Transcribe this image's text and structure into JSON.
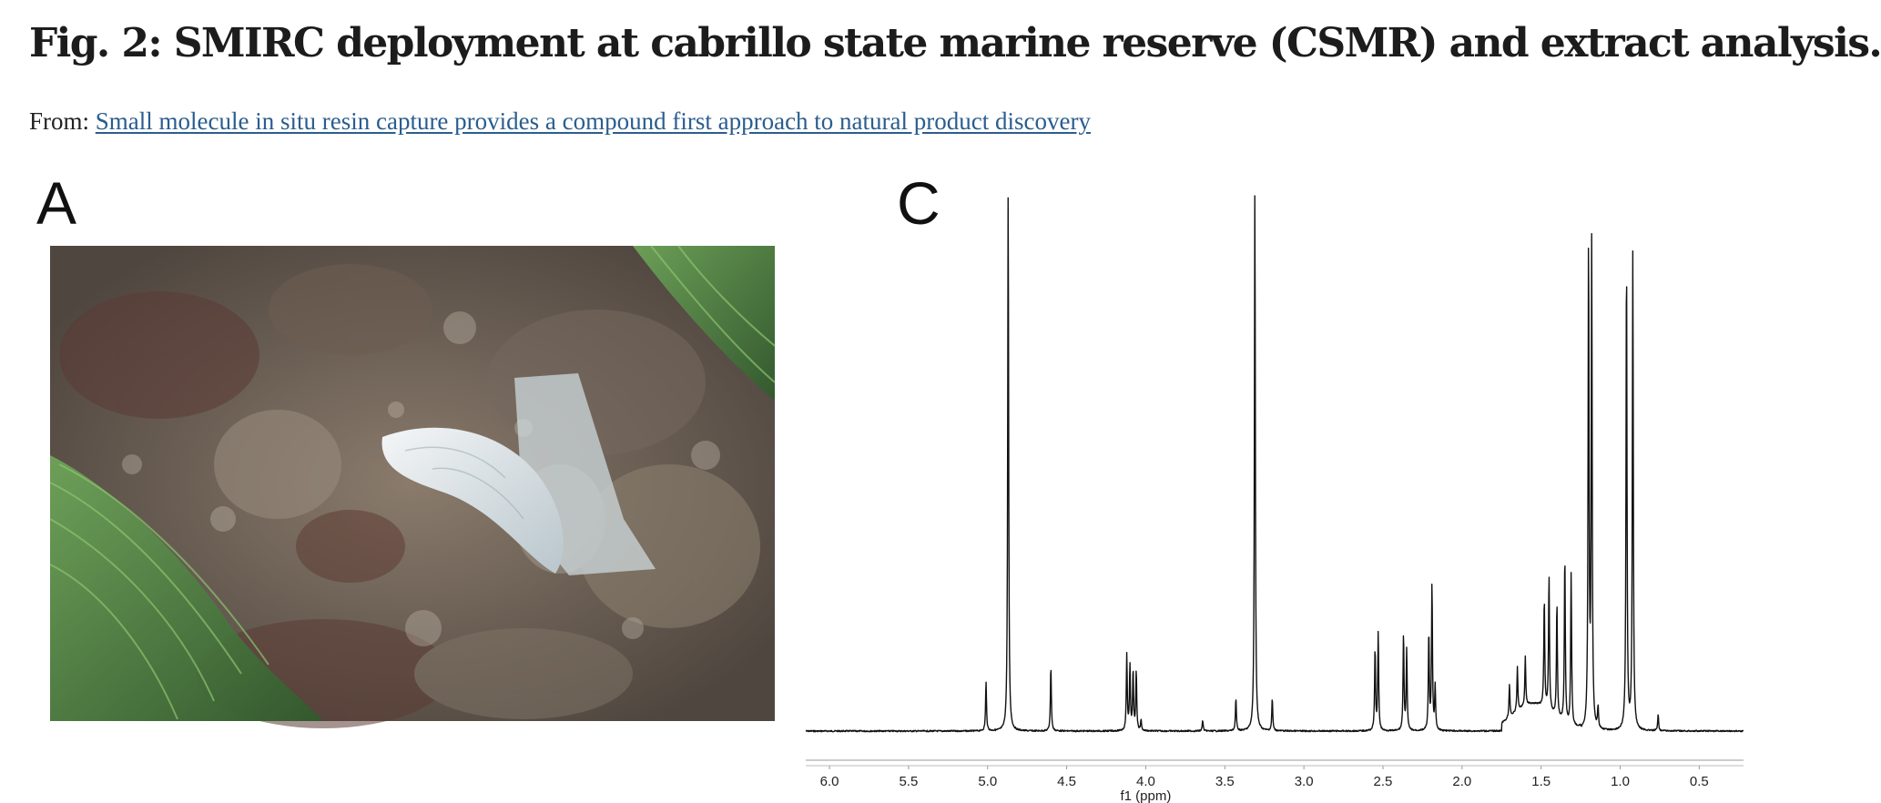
{
  "figure": {
    "title": "Fig. 2: SMIRC deployment at cabrillo state marine reserve (CSMR) and extract analysis.",
    "from_label": "From:",
    "source_link": "Small molecule in situ resin capture provides a compound first approach to natural product discovery"
  },
  "panels": {
    "a_label": "A",
    "c_label": "C"
  },
  "colors": {
    "link": "#2a5d8f",
    "spectrum": "#111111"
  },
  "chart_data": {
    "type": "line",
    "title": "",
    "xlabel": "f1 (ppm)",
    "ylabel": "",
    "xlim": [
      6.15,
      0.22
    ],
    "x_reversed": true,
    "x_ticks": [
      "6.0",
      "5.5",
      "5.0",
      "4.5",
      "4.0",
      "3.5",
      "3.0",
      "2.5",
      "2.0",
      "1.5",
      "1.0",
      "0.5"
    ],
    "y_axis_shown": false,
    "grid": false,
    "peaks": [
      {
        "ppm": 5.01,
        "height": 0.09
      },
      {
        "ppm": 4.87,
        "height": 1.0
      },
      {
        "ppm": 4.6,
        "height": 0.12
      },
      {
        "ppm": 4.12,
        "height": 0.14
      },
      {
        "ppm": 4.1,
        "height": 0.12
      },
      {
        "ppm": 4.08,
        "height": 0.11
      },
      {
        "ppm": 4.06,
        "height": 0.11
      },
      {
        "ppm": 4.03,
        "height": 0.02
      },
      {
        "ppm": 3.64,
        "height": 0.02
      },
      {
        "ppm": 3.43,
        "height": 0.06
      },
      {
        "ppm": 3.31,
        "height": 1.0
      },
      {
        "ppm": 3.2,
        "height": 0.06
      },
      {
        "ppm": 2.55,
        "height": 0.15
      },
      {
        "ppm": 2.53,
        "height": 0.18
      },
      {
        "ppm": 2.37,
        "height": 0.18
      },
      {
        "ppm": 2.35,
        "height": 0.15
      },
      {
        "ppm": 2.21,
        "height": 0.18
      },
      {
        "ppm": 2.19,
        "height": 0.27
      },
      {
        "ppm": 2.17,
        "height": 0.08
      },
      {
        "ppm": 1.7,
        "height": 0.06
      },
      {
        "ppm": 1.65,
        "height": 0.08
      },
      {
        "ppm": 1.6,
        "height": 0.09
      },
      {
        "ppm": 1.48,
        "height": 0.2
      },
      {
        "ppm": 1.45,
        "height": 0.25
      },
      {
        "ppm": 1.4,
        "height": 0.21
      },
      {
        "ppm": 1.35,
        "height": 0.31
      },
      {
        "ppm": 1.31,
        "height": 0.28
      },
      {
        "ppm": 1.2,
        "height": 0.9
      },
      {
        "ppm": 1.18,
        "height": 0.89
      },
      {
        "ppm": 1.14,
        "height": 0.04
      },
      {
        "ppm": 0.96,
        "height": 0.88
      },
      {
        "ppm": 0.92,
        "height": 0.88
      },
      {
        "ppm": 0.76,
        "height": 0.03
      }
    ]
  }
}
